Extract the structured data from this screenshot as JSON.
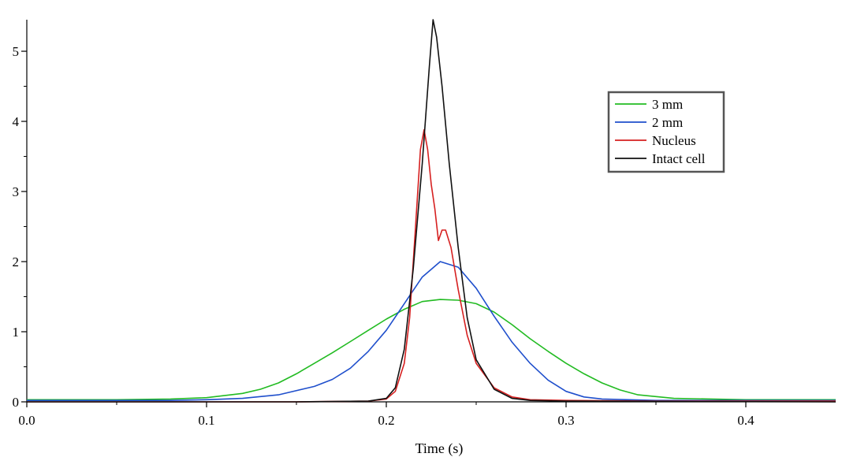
{
  "chart_data": {
    "type": "line",
    "title": "",
    "xlabel": "Time (s)",
    "ylabel": "",
    "xlim": [
      0.0,
      0.45
    ],
    "ylim": [
      0,
      5.45
    ],
    "xticks": [
      "0.0",
      "0.1",
      "0.2",
      "0.3",
      "0.4"
    ],
    "yticks": [
      "0",
      "1",
      "2",
      "3",
      "4",
      "5"
    ],
    "grid": false,
    "legend_position": "top-right",
    "series": [
      {
        "name": "3 mm",
        "color": "#22bb22",
        "points": [
          [
            0.0,
            0.03
          ],
          [
            0.05,
            0.03
          ],
          [
            0.08,
            0.04
          ],
          [
            0.1,
            0.06
          ],
          [
            0.12,
            0.12
          ],
          [
            0.13,
            0.18
          ],
          [
            0.14,
            0.27
          ],
          [
            0.15,
            0.4
          ],
          [
            0.16,
            0.55
          ],
          [
            0.17,
            0.7
          ],
          [
            0.18,
            0.86
          ],
          [
            0.19,
            1.02
          ],
          [
            0.2,
            1.18
          ],
          [
            0.21,
            1.32
          ],
          [
            0.22,
            1.43
          ],
          [
            0.23,
            1.46
          ],
          [
            0.24,
            1.45
          ],
          [
            0.25,
            1.4
          ],
          [
            0.26,
            1.28
          ],
          [
            0.27,
            1.1
          ],
          [
            0.28,
            0.9
          ],
          [
            0.29,
            0.72
          ],
          [
            0.3,
            0.55
          ],
          [
            0.31,
            0.4
          ],
          [
            0.32,
            0.27
          ],
          [
            0.33,
            0.17
          ],
          [
            0.34,
            0.1
          ],
          [
            0.36,
            0.05
          ],
          [
            0.4,
            0.03
          ],
          [
            0.45,
            0.03
          ]
        ]
      },
      {
        "name": "2 mm",
        "color": "#1f4fcc",
        "points": [
          [
            0.0,
            0.02
          ],
          [
            0.08,
            0.02
          ],
          [
            0.1,
            0.03
          ],
          [
            0.12,
            0.05
          ],
          [
            0.14,
            0.1
          ],
          [
            0.16,
            0.22
          ],
          [
            0.17,
            0.32
          ],
          [
            0.18,
            0.48
          ],
          [
            0.19,
            0.72
          ],
          [
            0.2,
            1.02
          ],
          [
            0.21,
            1.4
          ],
          [
            0.22,
            1.78
          ],
          [
            0.23,
            2.0
          ],
          [
            0.24,
            1.92
          ],
          [
            0.25,
            1.62
          ],
          [
            0.26,
            1.22
          ],
          [
            0.27,
            0.85
          ],
          [
            0.28,
            0.55
          ],
          [
            0.29,
            0.31
          ],
          [
            0.3,
            0.15
          ],
          [
            0.31,
            0.07
          ],
          [
            0.32,
            0.04
          ],
          [
            0.35,
            0.02
          ],
          [
            0.45,
            0.02
          ]
        ]
      },
      {
        "name": "Nucleus",
        "color": "#d62020",
        "points": [
          [
            0.0,
            0.0
          ],
          [
            0.15,
            0.0
          ],
          [
            0.19,
            0.01
          ],
          [
            0.2,
            0.04
          ],
          [
            0.205,
            0.15
          ],
          [
            0.21,
            0.55
          ],
          [
            0.213,
            1.2
          ],
          [
            0.216,
            2.4
          ],
          [
            0.219,
            3.6
          ],
          [
            0.221,
            3.88
          ],
          [
            0.223,
            3.6
          ],
          [
            0.225,
            3.1
          ],
          [
            0.227,
            2.75
          ],
          [
            0.229,
            2.3
          ],
          [
            0.231,
            2.45
          ],
          [
            0.233,
            2.45
          ],
          [
            0.236,
            2.2
          ],
          [
            0.24,
            1.6
          ],
          [
            0.245,
            0.95
          ],
          [
            0.25,
            0.55
          ],
          [
            0.26,
            0.2
          ],
          [
            0.27,
            0.07
          ],
          [
            0.28,
            0.03
          ],
          [
            0.3,
            0.02
          ],
          [
            0.35,
            0.01
          ],
          [
            0.45,
            0.01
          ]
        ]
      },
      {
        "name": "Intact cell",
        "color": "#111111",
        "points": [
          [
            0.0,
            0.0
          ],
          [
            0.15,
            0.0
          ],
          [
            0.19,
            0.01
          ],
          [
            0.2,
            0.05
          ],
          [
            0.205,
            0.2
          ],
          [
            0.21,
            0.75
          ],
          [
            0.215,
            1.9
          ],
          [
            0.22,
            3.4
          ],
          [
            0.224,
            4.8
          ],
          [
            0.226,
            5.45
          ],
          [
            0.228,
            5.2
          ],
          [
            0.231,
            4.5
          ],
          [
            0.235,
            3.4
          ],
          [
            0.24,
            2.2
          ],
          [
            0.245,
            1.2
          ],
          [
            0.25,
            0.6
          ],
          [
            0.26,
            0.18
          ],
          [
            0.27,
            0.05
          ],
          [
            0.28,
            0.02
          ],
          [
            0.3,
            0.01
          ],
          [
            0.45,
            0.0
          ]
        ]
      }
    ]
  }
}
